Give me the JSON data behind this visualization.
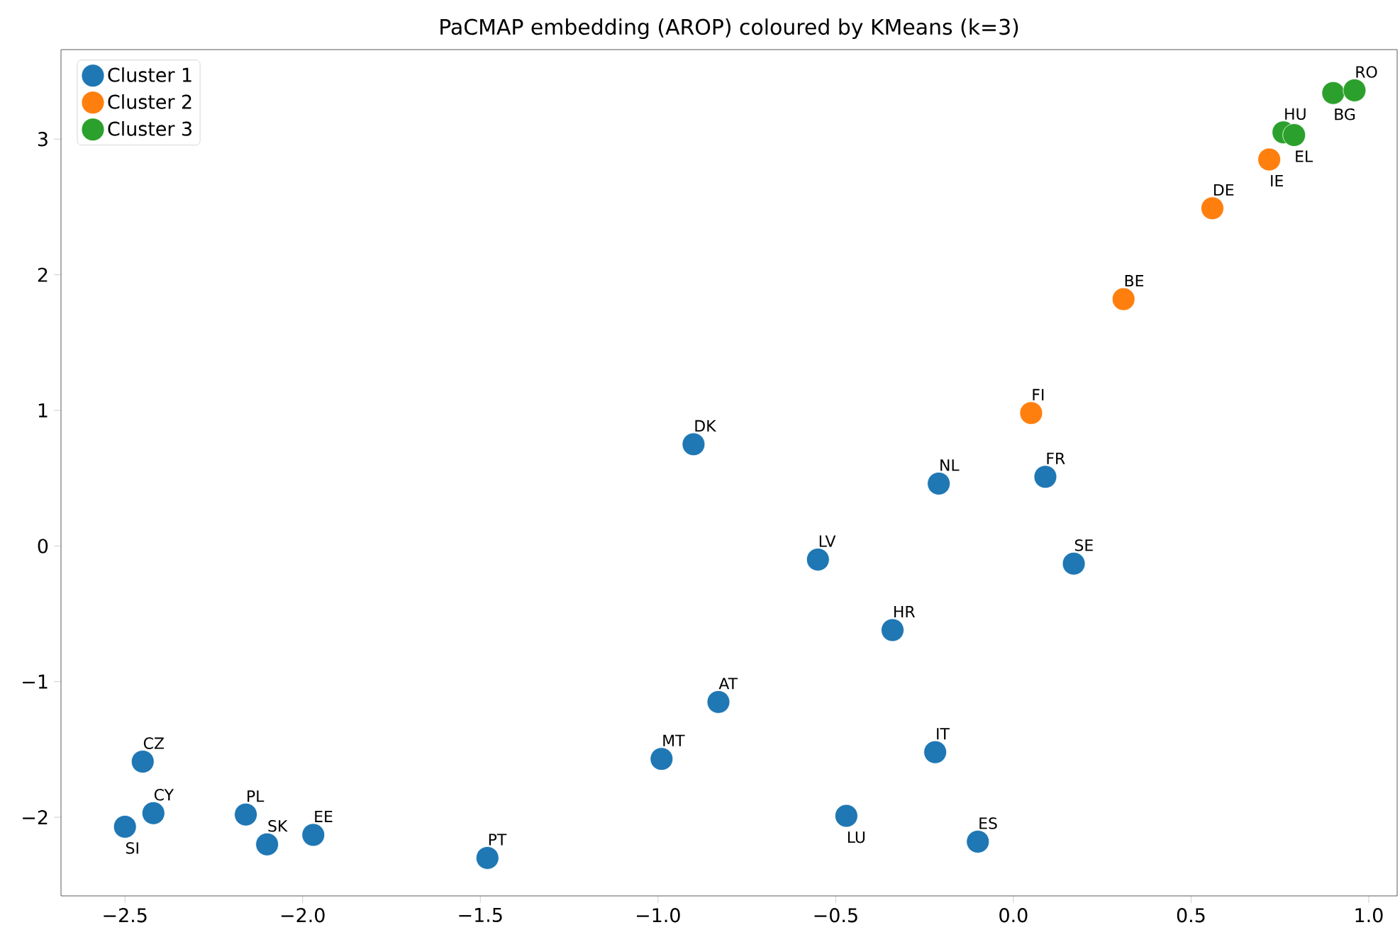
{
  "chart_data": {
    "type": "scatter",
    "title": "PaCMAP embedding (AROP) coloured by KMeans (k=3)",
    "xlim": [
      -2.68,
      1.08
    ],
    "ylim": [
      -2.58,
      3.66
    ],
    "xticks": [
      {
        "value": -2.5,
        "label": "−2.5"
      },
      {
        "value": -2.0,
        "label": "−2.0"
      },
      {
        "value": -1.5,
        "label": "−1.5"
      },
      {
        "value": -1.0,
        "label": "−1.0"
      },
      {
        "value": -0.5,
        "label": "−0.5"
      },
      {
        "value": 0.0,
        "label": "0.0"
      },
      {
        "value": 0.5,
        "label": "0.5"
      },
      {
        "value": 1.0,
        "label": "1.0"
      }
    ],
    "yticks": [
      {
        "value": -2,
        "label": "−2"
      },
      {
        "value": -1,
        "label": "−1"
      },
      0,
      1,
      2,
      3
    ],
    "marker": "circle",
    "legend": "top left",
    "series": [
      {
        "name": "Cluster 1",
        "color": "#1f77b4",
        "x": [
          -0.9,
          -0.21,
          0.09,
          -0.55,
          0.17,
          -0.34,
          -0.83,
          -0.99,
          -0.22,
          -0.47,
          -0.1,
          -1.48,
          -2.45,
          -2.42,
          -2.5,
          -2.16,
          -2.1,
          -1.97
        ],
        "values": [
          0.75,
          0.46,
          0.51,
          -0.1,
          -0.13,
          -0.62,
          -1.15,
          -1.57,
          -1.52,
          -1.99,
          -2.18,
          -2.3,
          -1.59,
          -1.97,
          -2.07,
          -1.98,
          -2.2,
          -2.13
        ]
      },
      {
        "name": "Cluster 2",
        "color": "#ff7f0e",
        "x": [
          0.05,
          0.31,
          0.56,
          0.72
        ],
        "values": [
          0.98,
          1.82,
          2.49,
          2.85
        ]
      },
      {
        "name": "Cluster 3",
        "color": "#2ca02c",
        "x": [
          0.76,
          0.79,
          0.9,
          0.96
        ],
        "values": [
          3.05,
          3.03,
          3.34,
          3.36
        ]
      }
    ],
    "annotations": [
      {
        "text": "DK",
        "x": -0.9,
        "y": 0.75
      },
      {
        "text": "NL",
        "x": -0.21,
        "y": 0.46
      },
      {
        "text": "FR",
        "x": 0.09,
        "y": 0.51
      },
      {
        "text": "LV",
        "x": -0.55,
        "y": -0.1
      },
      {
        "text": "SE",
        "x": 0.17,
        "y": -0.13
      },
      {
        "text": "HR",
        "x": -0.34,
        "y": -0.62
      },
      {
        "text": "AT",
        "x": -0.83,
        "y": -1.15
      },
      {
        "text": "MT",
        "x": -0.99,
        "y": -1.57
      },
      {
        "text": "IT",
        "x": -0.22,
        "y": -1.52
      },
      {
        "text": "LU",
        "x": -0.47,
        "y": -1.99
      },
      {
        "text": "ES",
        "x": -0.1,
        "y": -2.18
      },
      {
        "text": "PT",
        "x": -1.48,
        "y": -2.3
      },
      {
        "text": "CZ",
        "x": -2.45,
        "y": -1.59
      },
      {
        "text": "CY",
        "x": -2.42,
        "y": -1.97
      },
      {
        "text": "SI",
        "x": -2.5,
        "y": -2.07
      },
      {
        "text": "PL",
        "x": -2.16,
        "y": -1.98
      },
      {
        "text": "SK",
        "x": -2.1,
        "y": -2.2
      },
      {
        "text": "EE",
        "x": -1.97,
        "y": -2.13
      },
      {
        "text": "FI",
        "x": 0.05,
        "y": 0.98
      },
      {
        "text": "BE",
        "x": 0.31,
        "y": 1.82
      },
      {
        "text": "DE",
        "x": 0.56,
        "y": 2.49
      },
      {
        "text": "IE",
        "x": 0.72,
        "y": 2.85
      },
      {
        "text": "HU",
        "x": 0.76,
        "y": 3.05
      },
      {
        "text": "EL",
        "x": 0.79,
        "y": 3.03
      },
      {
        "text": "BG",
        "x": 0.9,
        "y": 3.34
      },
      {
        "text": "RO",
        "x": 0.96,
        "y": 3.36
      }
    ]
  }
}
